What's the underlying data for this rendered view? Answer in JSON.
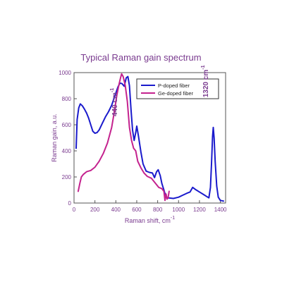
{
  "chart_data": {
    "type": "line",
    "title": "Typical Raman gain spectrum",
    "xlabel": "Raman shift, cm",
    "xlabel_sup": "-1",
    "ylabel": "Raman gain, a.u.",
    "xlim": [
      0,
      1450
    ],
    "ylim": [
      0,
      1000
    ],
    "xticks": [
      0,
      200,
      400,
      600,
      800,
      1000,
      1200,
      1400
    ],
    "yticks": [
      0,
      200,
      400,
      600,
      800,
      1000
    ],
    "grid": false,
    "legend_position": "top-right",
    "series": [
      {
        "name": "P-doped fiber",
        "color": "#1a1acc",
        "points": [
          [
            20,
            420
          ],
          [
            30,
            640
          ],
          [
            45,
            730
          ],
          [
            60,
            760
          ],
          [
            80,
            745
          ],
          [
            100,
            720
          ],
          [
            120,
            690
          ],
          [
            140,
            650
          ],
          [
            160,
            600
          ],
          [
            180,
            550
          ],
          [
            200,
            535
          ],
          [
            220,
            540
          ],
          [
            240,
            560
          ],
          [
            270,
            610
          ],
          [
            300,
            660
          ],
          [
            330,
            700
          ],
          [
            360,
            750
          ],
          [
            390,
            820
          ],
          [
            420,
            890
          ],
          [
            440,
            920
          ],
          [
            460,
            915
          ],
          [
            480,
            895
          ],
          [
            500,
            960
          ],
          [
            515,
            970
          ],
          [
            530,
            900
          ],
          [
            545,
            720
          ],
          [
            560,
            560
          ],
          [
            575,
            480
          ],
          [
            590,
            540
          ],
          [
            600,
            590
          ],
          [
            615,
            520
          ],
          [
            640,
            390
          ],
          [
            660,
            300
          ],
          [
            690,
            245
          ],
          [
            720,
            235
          ],
          [
            750,
            230
          ],
          [
            770,
            195
          ],
          [
            790,
            240
          ],
          [
            805,
            255
          ],
          [
            825,
            210
          ],
          [
            840,
            150
          ],
          [
            860,
            100
          ],
          [
            880,
            45
          ],
          [
            900,
            40
          ],
          [
            950,
            35
          ],
          [
            1000,
            45
          ],
          [
            1040,
            60
          ],
          [
            1080,
            75
          ],
          [
            1110,
            85
          ],
          [
            1135,
            120
          ],
          [
            1160,
            105
          ],
          [
            1200,
            85
          ],
          [
            1240,
            65
          ],
          [
            1270,
            50
          ],
          [
            1290,
            40
          ],
          [
            1305,
            120
          ],
          [
            1315,
            300
          ],
          [
            1325,
            510
          ],
          [
            1332,
            580
          ],
          [
            1340,
            500
          ],
          [
            1350,
            320
          ],
          [
            1365,
            130
          ],
          [
            1380,
            45
          ],
          [
            1400,
            20
          ],
          [
            1430,
            15
          ]
        ]
      },
      {
        "name": "Ge-doped fiber",
        "color": "#c4228e",
        "points": [
          [
            40,
            90
          ],
          [
            55,
            150
          ],
          [
            70,
            200
          ],
          [
            90,
            220
          ],
          [
            120,
            240
          ],
          [
            160,
            250
          ],
          [
            200,
            275
          ],
          [
            240,
            320
          ],
          [
            280,
            380
          ],
          [
            320,
            460
          ],
          [
            360,
            580
          ],
          [
            390,
            720
          ],
          [
            410,
            830
          ],
          [
            430,
            910
          ],
          [
            445,
            960
          ],
          [
            455,
            990
          ],
          [
            470,
            970
          ],
          [
            490,
            900
          ],
          [
            510,
            780
          ],
          [
            530,
            580
          ],
          [
            550,
            480
          ],
          [
            570,
            420
          ],
          [
            590,
            400
          ],
          [
            610,
            320
          ],
          [
            640,
            270
          ],
          [
            670,
            230
          ],
          [
            700,
            205
          ],
          [
            740,
            190
          ],
          [
            780,
            150
          ],
          [
            810,
            120
          ],
          [
            840,
            110
          ],
          [
            860,
            90
          ],
          [
            870,
            20
          ],
          [
            880,
            70
          ],
          [
            890,
            30
          ],
          [
            900,
            40
          ],
          [
            910,
            90
          ]
        ]
      }
    ],
    "annotations": [
      {
        "text": "440 cm",
        "sup": "-1",
        "x": 440,
        "y": 665,
        "color": "#7a3b8f"
      },
      {
        "text": "1320 cm",
        "sup": "-1",
        "x": 1310,
        "y": 810,
        "color": "#7a3b8f"
      }
    ]
  }
}
